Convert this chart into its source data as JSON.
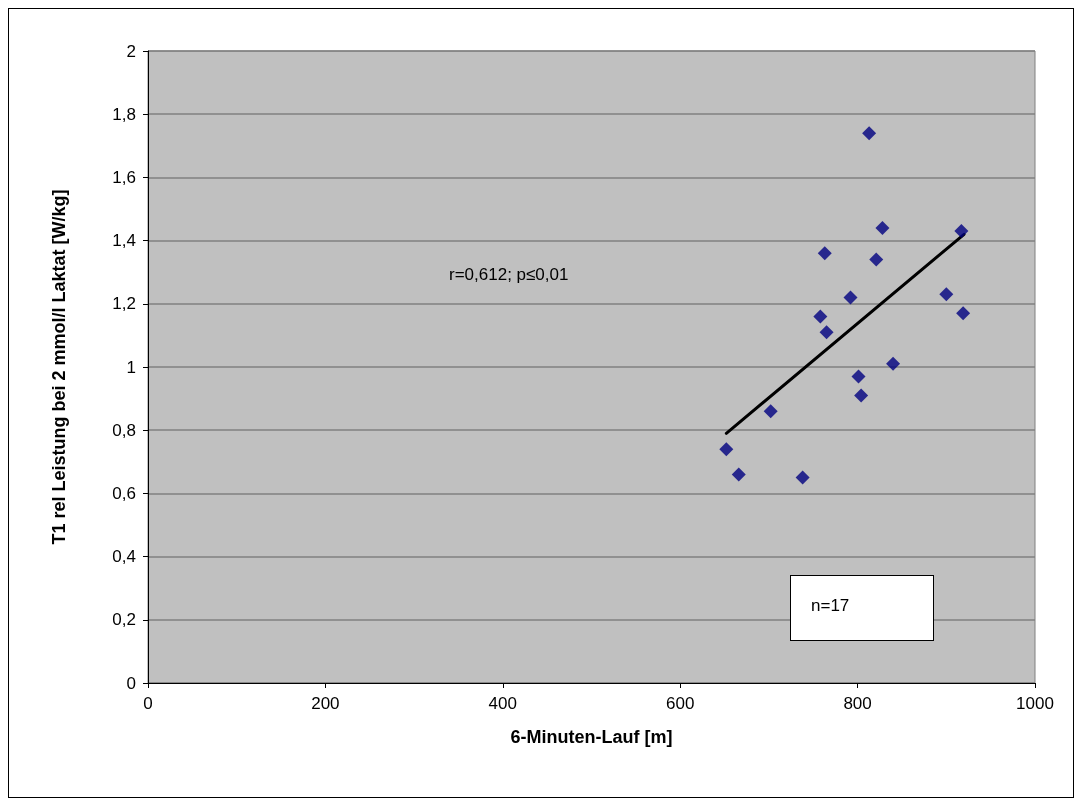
{
  "chart_data": {
    "type": "scatter",
    "xlabel": "6-Minuten-Lauf [m]",
    "ylabel": "T1 rel Leistung bei 2 mmol/l Laktat [W/kg]",
    "xlim": [
      0,
      1000
    ],
    "xticks": [
      0,
      200,
      400,
      600,
      800,
      1000
    ],
    "ylim": [
      0,
      2
    ],
    "yticks": [
      0,
      {
        "value": 0.2,
        "label": "0,2"
      },
      {
        "value": 0.4,
        "label": "0,4"
      },
      {
        "value": 0.6,
        "label": "0,6"
      },
      {
        "value": 0.8,
        "label": "0,8"
      },
      1,
      {
        "value": 1.2,
        "label": "1,2"
      },
      {
        "value": 1.4,
        "label": "1,4"
      },
      {
        "value": 1.6,
        "label": "1,6"
      },
      {
        "value": 1.8,
        "label": "1,8"
      },
      2
    ],
    "grid": "y",
    "marker": "diamond",
    "annotations": [
      "r=0,612; p≤0,01",
      "n=17"
    ],
    "series": [
      {
        "color": "#000080",
        "x": [
          813,
          828,
          917,
          763,
          821,
          792,
          900,
          919,
          758,
          765,
          840,
          801,
          804,
          702,
          652,
          666,
          738
        ],
        "values": [
          1.74,
          1.44,
          1.43,
          1.36,
          1.34,
          1.22,
          1.23,
          1.17,
          1.16,
          1.11,
          1.01,
          0.97,
          0.91,
          0.86,
          0.74,
          0.66,
          0.65
        ]
      },
      {
        "type": "line",
        "color": "#000000",
        "marker": "none",
        "line_style": "solid",
        "x": [
          652,
          920
        ],
        "values": [
          0.79,
          1.42
        ]
      }
    ]
  }
}
